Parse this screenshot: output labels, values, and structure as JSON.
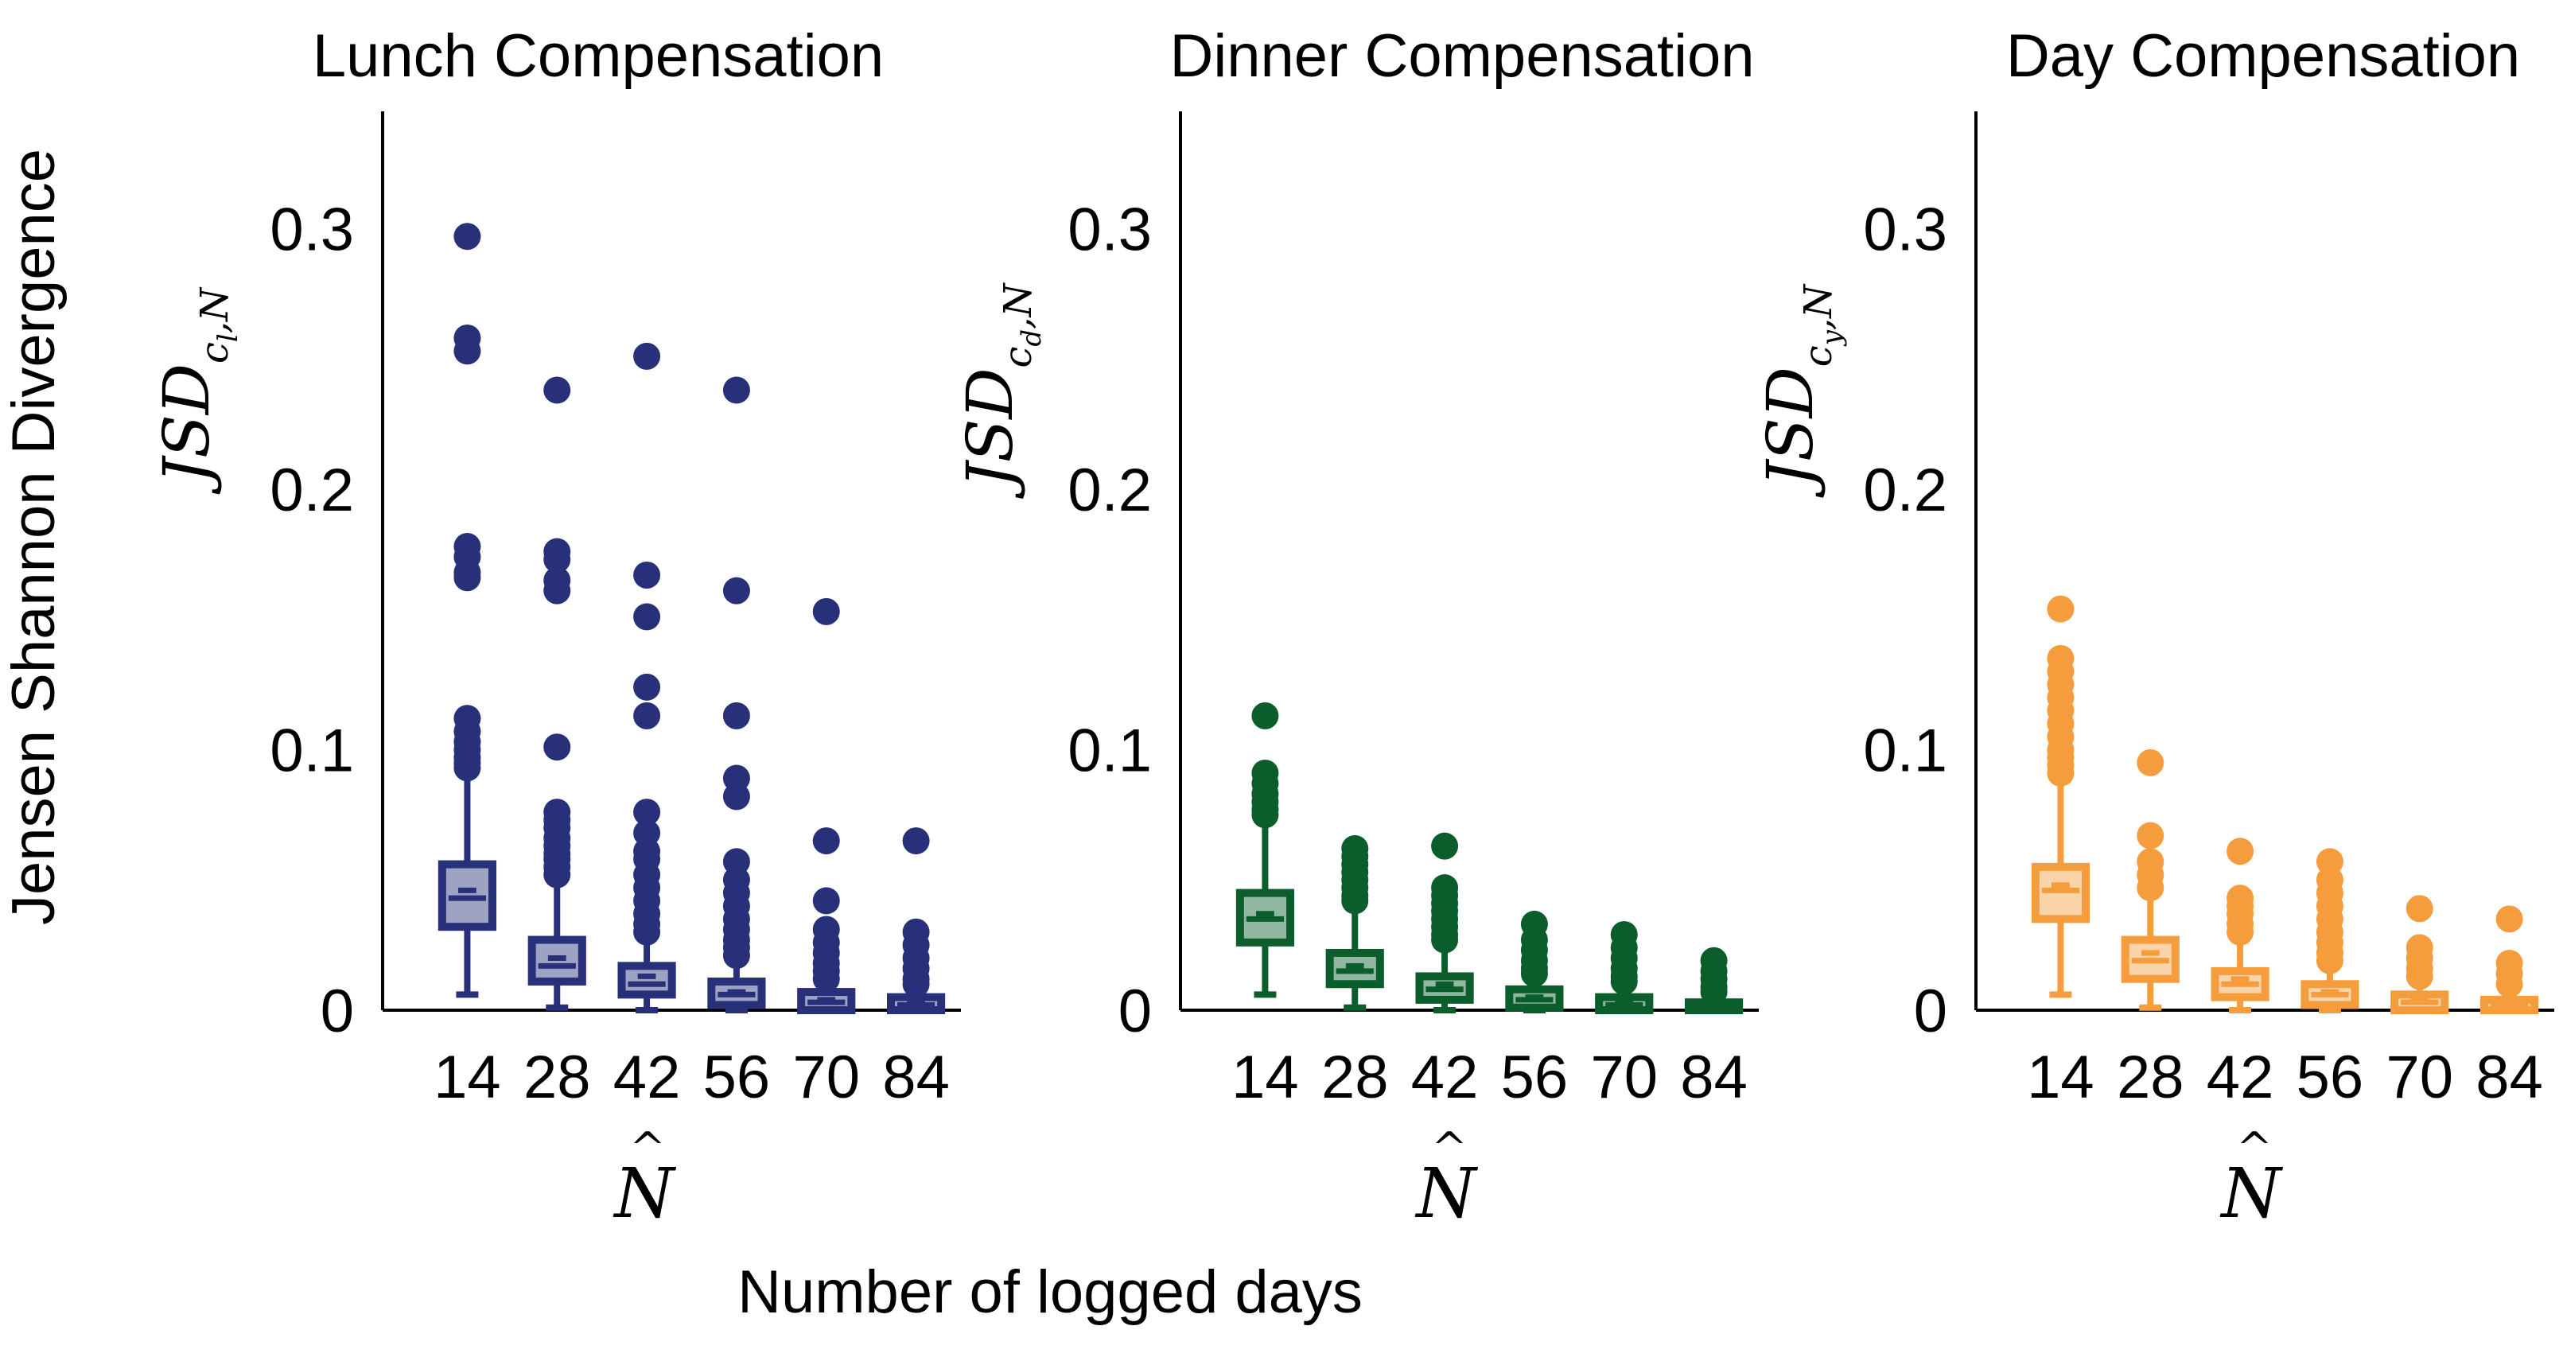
{
  "figure": {
    "ylabel": "Jensen Shannon Divergence",
    "xlabel": "Number of logged days"
  },
  "chart_data": [
    {
      "type": "box",
      "title": "Lunch Compensation",
      "xlabel_symbol": "N",
      "ylabel_main": "JSD",
      "ylabel_sub": "c",
      "ylabel_subsub": "l",
      "ylabel_sub_tail": ",N",
      "color": "#28307a",
      "categories": [
        "14",
        "28",
        "42",
        "56",
        "70",
        "84"
      ],
      "ylim": [
        0,
        0.345
      ],
      "yticks": [
        0,
        0.1,
        0.2,
        0.3
      ],
      "ytick_labels": [
        "0",
        "0.1",
        "0.2",
        "0.3"
      ],
      "boxes": [
        {
          "whislo": 0.006,
          "q1": 0.032,
          "med": 0.043,
          "mean": 0.046,
          "q3": 0.056,
          "whishi": 0.093,
          "fliers": [
            0.297,
            0.258,
            0.253,
            0.178,
            0.174,
            0.168,
            0.166,
            0.112,
            0.107,
            0.103,
            0.1,
            0.097,
            0.095,
            0.093
          ]
        },
        {
          "whislo": 0.001,
          "q1": 0.011,
          "med": 0.017,
          "mean": 0.02,
          "q3": 0.027,
          "whishi": 0.05,
          "fliers": [
            0.238,
            0.176,
            0.173,
            0.165,
            0.161,
            0.101,
            0.076,
            0.073,
            0.07,
            0.066,
            0.063,
            0.06,
            0.058,
            0.055,
            0.052
          ]
        },
        {
          "whislo": 0.0,
          "q1": 0.006,
          "med": 0.01,
          "mean": 0.013,
          "q3": 0.017,
          "whishi": 0.028,
          "fliers": [
            0.251,
            0.167,
            0.151,
            0.124,
            0.113,
            0.076,
            0.068,
            0.061,
            0.058,
            0.052,
            0.047,
            0.042,
            0.037,
            0.033,
            0.03
          ]
        },
        {
          "whislo": 0.0,
          "q1": 0.002,
          "med": 0.006,
          "mean": 0.007,
          "q3": 0.011,
          "whishi": 0.019,
          "fliers": [
            0.238,
            0.161,
            0.113,
            0.089,
            0.082,
            0.057,
            0.05,
            0.045,
            0.04,
            0.035,
            0.031,
            0.027,
            0.024,
            0.021
          ]
        },
        {
          "whislo": 0.0,
          "q1": 0.0,
          "med": 0.003,
          "mean": 0.004,
          "q3": 0.007,
          "whishi": 0.01,
          "fliers": [
            0.153,
            0.065,
            0.042,
            0.031,
            0.026,
            0.022,
            0.018,
            0.015,
            0.012
          ]
        },
        {
          "whislo": 0.0,
          "q1": 0.0,
          "med": 0.002,
          "mean": 0.003,
          "q3": 0.005,
          "whishi": 0.008,
          "fliers": [
            0.065,
            0.03,
            0.025,
            0.02,
            0.016,
            0.012,
            0.01
          ]
        }
      ]
    },
    {
      "type": "box",
      "title": "Dinner Compensation",
      "xlabel_symbol": "N",
      "ylabel_main": "JSD",
      "ylabel_sub": "c",
      "ylabel_subsub": "d",
      "ylabel_sub_tail": ",N",
      "color": "#0b5e2c",
      "categories": [
        "14",
        "28",
        "42",
        "56",
        "70",
        "84"
      ],
      "ylim": [
        0,
        0.345
      ],
      "yticks": [
        0,
        0.1,
        0.2,
        0.3
      ],
      "ytick_labels": [
        "0",
        "0.1",
        "0.2",
        "0.3"
      ],
      "boxes": [
        {
          "whislo": 0.006,
          "q1": 0.026,
          "med": 0.035,
          "mean": 0.037,
          "q3": 0.045,
          "whishi": 0.072,
          "fliers": [
            0.113,
            0.091,
            0.087,
            0.083,
            0.08,
            0.077,
            0.075
          ]
        },
        {
          "whislo": 0.001,
          "q1": 0.01,
          "med": 0.015,
          "mean": 0.017,
          "q3": 0.022,
          "whishi": 0.04,
          "fliers": [
            0.062,
            0.059,
            0.056,
            0.053,
            0.05,
            0.047,
            0.044,
            0.042
          ]
        },
        {
          "whislo": 0.0,
          "q1": 0.004,
          "med": 0.008,
          "mean": 0.01,
          "q3": 0.013,
          "whishi": 0.024,
          "fliers": [
            0.063,
            0.047,
            0.044,
            0.041,
            0.038,
            0.035,
            0.032,
            0.029,
            0.027
          ]
        },
        {
          "whislo": 0.0,
          "q1": 0.001,
          "med": 0.004,
          "mean": 0.005,
          "q3": 0.008,
          "whishi": 0.012,
          "fliers": [
            0.033,
            0.027,
            0.023,
            0.019,
            0.016,
            0.014
          ]
        },
        {
          "whislo": 0.0,
          "q1": 0.0,
          "med": 0.002,
          "mean": 0.003,
          "q3": 0.005,
          "whishi": 0.009,
          "fliers": [
            0.029,
            0.024,
            0.02,
            0.016,
            0.013,
            0.011
          ]
        },
        {
          "whislo": 0.0,
          "q1": 0.0,
          "med": 0.001,
          "mean": 0.002,
          "q3": 0.003,
          "whishi": 0.006,
          "fliers": [
            0.019,
            0.015,
            0.012,
            0.009,
            0.007
          ]
        }
      ]
    },
    {
      "type": "box",
      "title": "Day Compensation",
      "xlabel_symbol": "N",
      "ylabel_main": "JSD",
      "ylabel_sub": "c",
      "ylabel_subsub": "y",
      "ylabel_sub_tail": ",N",
      "color": "#f59d3d",
      "categories": [
        "14",
        "28",
        "42",
        "56",
        "70",
        "84"
      ],
      "ylim": [
        0,
        0.345
      ],
      "yticks": [
        0,
        0.1,
        0.2,
        0.3
      ],
      "ytick_labels": [
        "0",
        "0.1",
        "0.2",
        "0.3"
      ],
      "boxes": [
        {
          "whislo": 0.006,
          "q1": 0.035,
          "med": 0.046,
          "mean": 0.048,
          "q3": 0.055,
          "whishi": 0.09,
          "fliers": [
            0.154,
            0.135,
            0.13,
            0.125,
            0.12,
            0.115,
            0.11,
            0.105,
            0.1,
            0.097,
            0.094,
            0.091
          ]
        },
        {
          "whislo": 0.001,
          "q1": 0.012,
          "med": 0.019,
          "mean": 0.022,
          "q3": 0.027,
          "whishi": 0.045,
          "fliers": [
            0.095,
            0.067,
            0.057,
            0.052,
            0.047
          ]
        },
        {
          "whislo": 0.0,
          "q1": 0.005,
          "med": 0.01,
          "mean": 0.012,
          "q3": 0.015,
          "whishi": 0.028,
          "fliers": [
            0.061,
            0.043,
            0.04,
            0.037,
            0.033,
            0.03
          ]
        },
        {
          "whislo": 0.0,
          "q1": 0.002,
          "med": 0.006,
          "mean": 0.007,
          "q3": 0.01,
          "whishi": 0.016,
          "fliers": [
            0.057,
            0.05,
            0.045,
            0.04,
            0.035,
            0.03,
            0.026,
            0.022,
            0.019
          ]
        },
        {
          "whislo": 0.0,
          "q1": 0.0,
          "med": 0.003,
          "mean": 0.004,
          "q3": 0.006,
          "whishi": 0.01,
          "fliers": [
            0.039,
            0.024,
            0.02,
            0.016,
            0.013
          ]
        },
        {
          "whislo": 0.0,
          "q1": 0.0,
          "med": 0.002,
          "mean": 0.003,
          "q3": 0.004,
          "whishi": 0.007,
          "fliers": [
            0.035,
            0.018,
            0.014,
            0.01
          ]
        }
      ]
    }
  ]
}
